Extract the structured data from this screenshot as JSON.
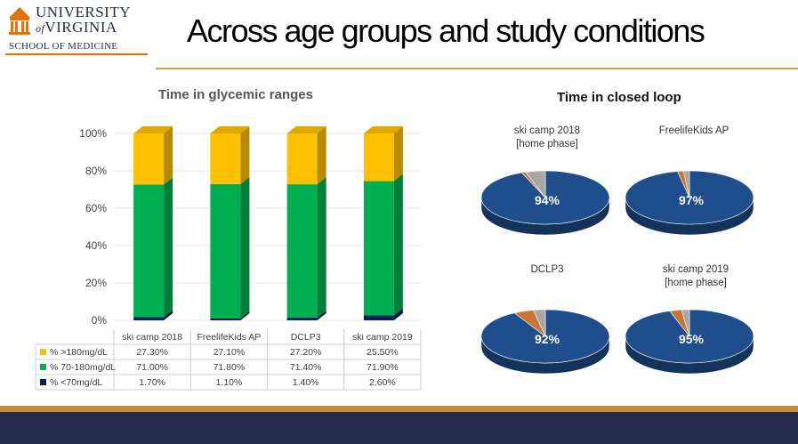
{
  "header": {
    "logo_line1": "UNIVERSITY",
    "logo_of": "of",
    "logo_line2": "VIRGINIA",
    "logo_school": "SCHOOL OF MEDICINE",
    "title": "Across age groups and study conditions"
  },
  "colors": {
    "high": "#ffc000",
    "range": "#00b050",
    "low": "#002060",
    "pie_main": "#1f4e8c",
    "pie_orange": "#c87533",
    "pie_grey": "#a6a6a6",
    "brand_orange": "#e57200",
    "brand_navy": "#232d4b"
  },
  "chart_data": [
    {
      "type": "bar",
      "stacked": true,
      "title": "Time in glycemic ranges",
      "categories": [
        "ski camp 2018",
        "FreelifeKids AP",
        "DCLP3",
        "ski camp 2019"
      ],
      "series": [
        {
          "name": "% >180mg/dL",
          "values": [
            27.3,
            27.1,
            27.2,
            25.5
          ],
          "labels": [
            "27.30%",
            "27.10%",
            "27.20%",
            "25.50%"
          ]
        },
        {
          "name": "% 70-180mg/dL",
          "values": [
            71.0,
            71.8,
            71.4,
            71.9
          ],
          "labels": [
            "71.00%",
            "71.80%",
            "71.40%",
            "71.90%"
          ]
        },
        {
          "name": "% <70mg/dL",
          "values": [
            1.7,
            1.1,
            1.4,
            2.6
          ],
          "labels": [
            "1.70%",
            "1.10%",
            "1.40%",
            "2.60%"
          ]
        }
      ],
      "yticks": [
        "0%",
        "20%",
        "40%",
        "60%",
        "80%",
        "100%"
      ],
      "ylim": [
        0,
        100
      ],
      "grid": true,
      "legend": "data-table"
    },
    {
      "type": "pie",
      "title": "Time in closed loop",
      "pies": [
        {
          "label": [
            "ski camp 2018",
            "[home phase]"
          ],
          "value": 94,
          "value_label": "94%",
          "orange": 1,
          "grey": 5
        },
        {
          "label": [
            "FreelifeKids AP"
          ],
          "value": 97,
          "value_label": "97%",
          "orange": 1.5,
          "grey": 1.5
        },
        {
          "label": [
            "DCLP3"
          ],
          "value": 92,
          "value_label": "92%",
          "orange": 5,
          "grey": 3
        },
        {
          "label": [
            "ski camp 2019",
            "[home phase]"
          ],
          "value": 95,
          "value_label": "95%",
          "orange": 3,
          "grey": 2
        }
      ]
    }
  ]
}
